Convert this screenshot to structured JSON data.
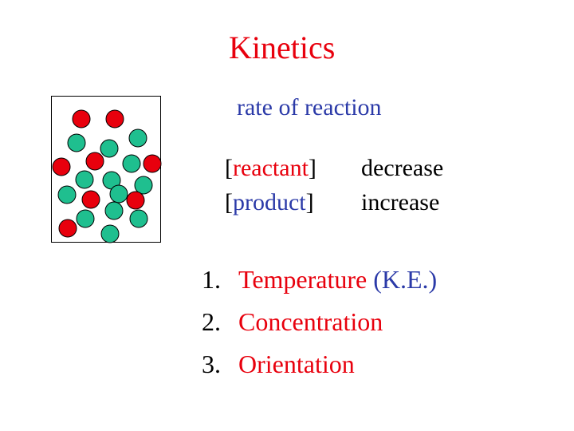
{
  "title": "Kinetics",
  "subtitle": "rate of reaction",
  "rows": {
    "reactant": {
      "open": "[",
      "label": "reactant",
      "close": "]",
      "trend": "decrease"
    },
    "product": {
      "open": "[",
      "label": "product",
      "close": "]",
      "trend": "increase"
    }
  },
  "factors": [
    {
      "number": "1.",
      "label": "Temperature",
      "extra": " (K.E.)"
    },
    {
      "number": "2.",
      "label": "Concentration",
      "extra": ""
    },
    {
      "number": "3.",
      "label": "Orientation",
      "extra": ""
    }
  ],
  "colors": {
    "title": "#e8000d",
    "subtitle": "#2b3aa8",
    "reactant_molecule": "#e8000d",
    "product_molecule": "#1fbf8f",
    "outline": "#000000"
  }
}
